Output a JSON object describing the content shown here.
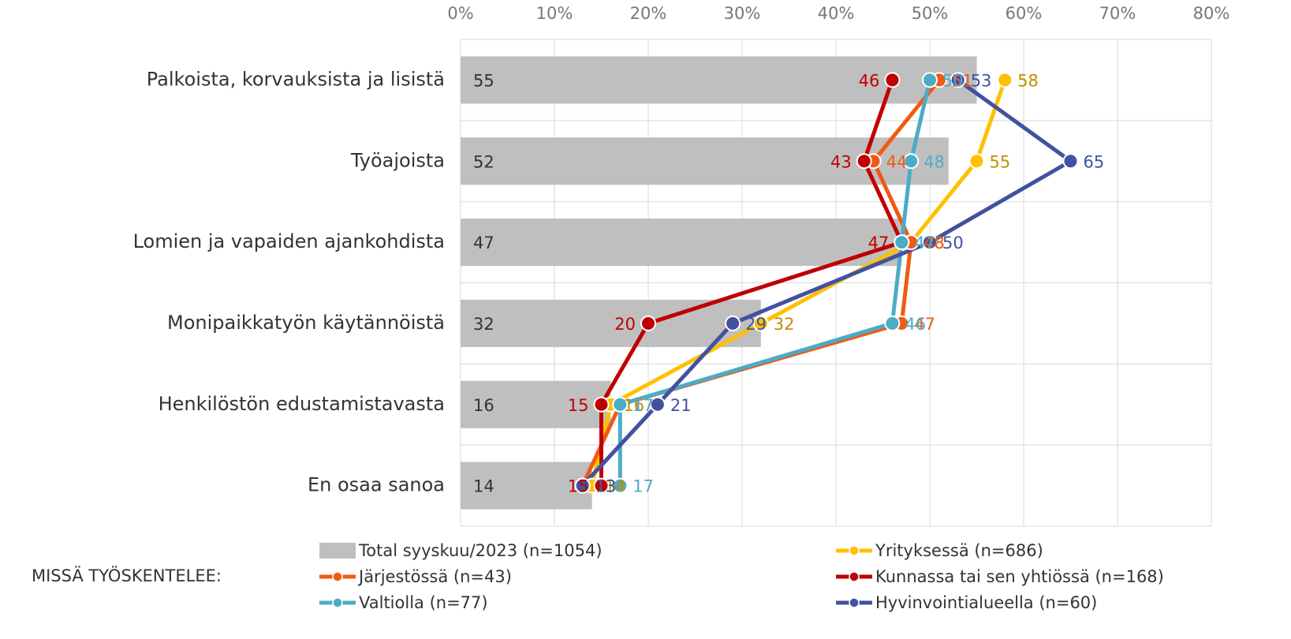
{
  "chart_data": {
    "type": "bar_line",
    "categories": [
      "Palkoista, korvauksista ja lisistä",
      "Työajoista",
      "Lomien ja vapaiden ajankohdista",
      "Monipaikkatyön käytännöistä",
      "Henkilöstön edustamistavasta",
      "En osaa sanoa"
    ],
    "bars": {
      "name": "Total syyskuu/2023 (n=1054)",
      "color": "#bfbfbf",
      "values": [
        55,
        52,
        47,
        32,
        16,
        14
      ]
    },
    "series": [
      {
        "name": "Yrityksessä (n=686)",
        "color": "#ffc000",
        "label_color": "#bf8f00",
        "values": [
          58,
          55,
          48,
          32,
          16,
          14
        ]
      },
      {
        "name": "Järjestössä (n=43)",
        "color": "#f05a14",
        "label_color": "#f05a14",
        "values": [
          51,
          44,
          48,
          47,
          17,
          13
        ]
      },
      {
        "name": "Kunnassa tai sen yhtiössä (n=168)",
        "color": "#c00000",
        "label_color": "#c00000",
        "values": [
          46,
          43,
          47,
          20,
          15,
          15
        ]
      },
      {
        "name": "Valtiolla (n=77)",
        "color": "#4bacc6",
        "label_color": "#4bacc6",
        "values": [
          50,
          48,
          47,
          46,
          17,
          17
        ]
      },
      {
        "name": "Hyvinvointialueella (n=60)",
        "color": "#4251a0",
        "label_color": "#4251a0",
        "values": [
          53,
          65,
          50,
          29,
          21,
          13
        ]
      }
    ],
    "legend_title": "MISSÄ TYÖSKENTELEE:",
    "xlim": [
      0,
      80
    ],
    "xticks": [
      {
        "value": 0,
        "label": "0%"
      },
      {
        "value": 10,
        "label": "10%"
      },
      {
        "value": 20,
        "label": "20%"
      },
      {
        "value": 30,
        "label": "30%"
      },
      {
        "value": 40,
        "label": "40%"
      },
      {
        "value": 50,
        "label": "50%"
      },
      {
        "value": 60,
        "label": "60%"
      },
      {
        "value": 70,
        "label": "70%"
      },
      {
        "value": 80,
        "label": "80%"
      }
    ],
    "grid": true
  }
}
